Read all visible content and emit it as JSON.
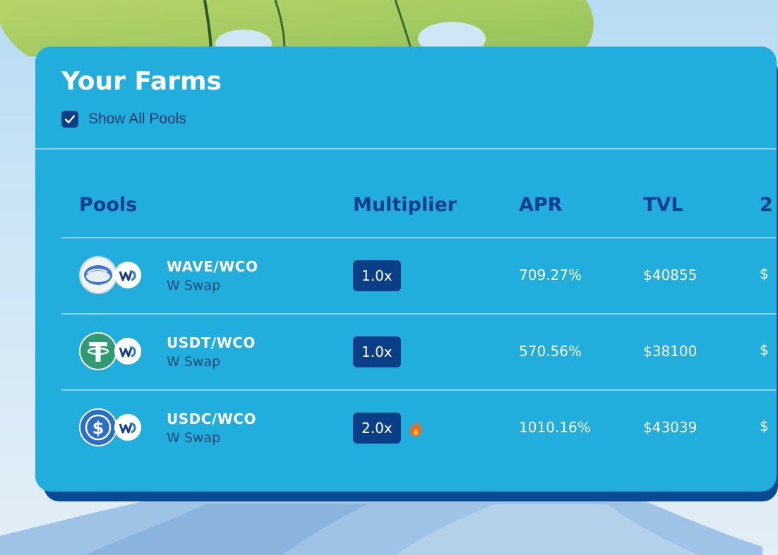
{
  "farms": {
    "title": "Your Farms",
    "show_all_pools": {
      "label": "Show All Pools",
      "checked": true
    },
    "columns": [
      "Pools",
      "Multiplier",
      "APR",
      "TVL",
      "2"
    ],
    "rows": [
      {
        "pair": "WAVE/WCO",
        "dex": "W Swap",
        "multiplier": "1.0x",
        "hot": false,
        "apr": "709.27%",
        "tvl": "$40855",
        "extra": "$",
        "token_a_icon": "wave-token-icon",
        "token_b_icon": "wco-token-icon"
      },
      {
        "pair": "USDT/WCO",
        "dex": "W Swap",
        "multiplier": "1.0x",
        "hot": false,
        "apr": "570.56%",
        "tvl": "$38100",
        "extra": "$",
        "token_a_icon": "usdt-token-icon",
        "token_b_icon": "wco-token-icon"
      },
      {
        "pair": "USDC/WCO",
        "dex": "W Swap",
        "multiplier": "2.0x",
        "hot": true,
        "apr": "1010.16%",
        "tvl": "$43039",
        "extra": "$",
        "token_a_icon": "usdc-token-icon",
        "token_b_icon": "wco-token-icon"
      }
    ]
  },
  "colors": {
    "card": "#21aedc",
    "card_shadow": "#0a4a92",
    "header_text": "#0d3f8f",
    "badge": "#0a3f88",
    "usdt": "#2f9a73",
    "usdc": "#2a6fc4"
  }
}
